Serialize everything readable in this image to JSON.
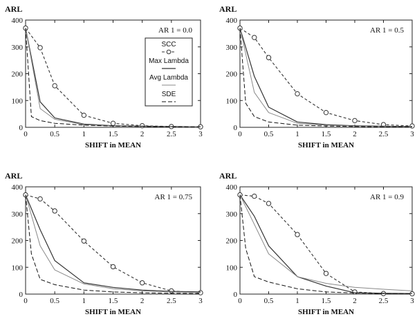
{
  "chart_data": [
    {
      "type": "line",
      "annotation": "AR 1 = 0.0",
      "ylabel": "ARL",
      "xlabel": "SHIFT in MEAN",
      "xlim": [
        0,
        3
      ],
      "ylim": [
        0,
        400
      ],
      "xticks": [
        "0",
        "0.5",
        "1",
        "1.5",
        "2",
        "2.5",
        "3"
      ],
      "yticks": [
        "0",
        "100",
        "200",
        "300",
        "400"
      ],
      "legend": {
        "entries": [
          "SCC",
          "Max Lambda",
          "Avg Lambda",
          "SDE"
        ],
        "placement": "top-right"
      },
      "series": [
        {
          "name": "SCC",
          "style": "dashed-circle",
          "x": [
            0,
            0.25,
            0.5,
            1,
            1.5,
            2,
            2.5,
            3
          ],
          "y": [
            370,
            297,
            155,
            45,
            15,
            6,
            3,
            2
          ]
        },
        {
          "name": "Max Lambda",
          "style": "solid-dark",
          "x": [
            0,
            0.25,
            0.5,
            1,
            1.5,
            2,
            2.5,
            3
          ],
          "y": [
            370,
            95,
            35,
            12,
            6,
            4,
            3,
            2
          ]
        },
        {
          "name": "Avg Lambda",
          "style": "solid-light",
          "x": [
            0,
            0.25,
            0.5,
            1,
            1.5,
            2,
            2.5,
            3
          ],
          "y": [
            370,
            70,
            30,
            10,
            5,
            3,
            2,
            2
          ]
        },
        {
          "name": "SDE",
          "style": "dashed-long",
          "x": [
            0,
            0.1,
            0.25,
            0.5,
            1,
            1.5,
            2,
            2.5,
            3
          ],
          "y": [
            370,
            40,
            25,
            15,
            8,
            5,
            3,
            2,
            2
          ]
        }
      ]
    },
    {
      "type": "line",
      "annotation": "AR 1 = 0.5",
      "ylabel": "ARL",
      "xlabel": "SHIFT in MEAN",
      "xlim": [
        0,
        3
      ],
      "ylim": [
        0,
        400
      ],
      "xticks": [
        "0",
        "0.5",
        "1",
        "1.5",
        "2",
        "2.5",
        "3"
      ],
      "yticks": [
        "0",
        "100",
        "200",
        "300",
        "400"
      ],
      "series": [
        {
          "name": "SCC",
          "style": "dashed-circle",
          "x": [
            0,
            0.25,
            0.5,
            1,
            1.5,
            2,
            2.5,
            3
          ],
          "y": [
            370,
            335,
            260,
            125,
            55,
            25,
            10,
            5
          ]
        },
        {
          "name": "Max Lambda",
          "style": "solid-dark",
          "x": [
            0,
            0.25,
            0.5,
            1,
            1.5,
            2,
            2.5,
            3
          ],
          "y": [
            370,
            190,
            75,
            20,
            10,
            6,
            4,
            3
          ]
        },
        {
          "name": "Avg Lambda",
          "style": "solid-light",
          "x": [
            0,
            0.25,
            0.5,
            1,
            1.5,
            2,
            2.5,
            3
          ],
          "y": [
            370,
            130,
            55,
            15,
            8,
            5,
            3,
            2
          ]
        },
        {
          "name": "SDE",
          "style": "dashed-long",
          "x": [
            0,
            0.1,
            0.25,
            0.5,
            1,
            1.5,
            2,
            2.5,
            3
          ],
          "y": [
            370,
            90,
            40,
            20,
            8,
            5,
            3,
            2,
            2
          ]
        }
      ]
    },
    {
      "type": "line",
      "annotation": "AR 1 = 0.75",
      "ylabel": "ARL",
      "xlabel": "SHIFT in MEAN",
      "xlim": [
        0,
        3
      ],
      "ylim": [
        0,
        400
      ],
      "xticks": [
        "0",
        "0.5",
        "1",
        "1.5",
        "2",
        "2.5",
        "3"
      ],
      "yticks": [
        "0",
        "100",
        "200",
        "300",
        "400"
      ],
      "series": [
        {
          "name": "SCC",
          "style": "dashed-circle",
          "x": [
            0,
            0.25,
            0.5,
            1,
            1.5,
            2,
            2.5,
            3
          ],
          "y": [
            370,
            355,
            310,
            198,
            102,
            42,
            12,
            5
          ]
        },
        {
          "name": "Max Lambda",
          "style": "solid-dark",
          "x": [
            0,
            0.25,
            0.5,
            1,
            1.5,
            2,
            2.5,
            3
          ],
          "y": [
            370,
            240,
            125,
            42,
            25,
            15,
            10,
            8
          ]
        },
        {
          "name": "Avg Lambda",
          "style": "solid-light",
          "x": [
            0,
            0.25,
            0.5,
            1,
            1.5,
            2,
            2.5,
            3
          ],
          "y": [
            370,
            180,
            90,
            38,
            20,
            12,
            8,
            6
          ]
        },
        {
          "name": "SDE",
          "style": "dashed-long",
          "x": [
            0,
            0.1,
            0.25,
            0.5,
            1,
            1.5,
            2,
            2.5,
            3
          ],
          "y": [
            370,
            150,
            55,
            35,
            15,
            8,
            5,
            3,
            2
          ]
        }
      ]
    },
    {
      "type": "line",
      "annotation": "AR 1 = 0.9",
      "ylabel": "ARL",
      "xlabel": "SHIFT in MEAN",
      "xlim": [
        0,
        3
      ],
      "ylim": [
        0,
        400
      ],
      "xticks": [
        "0",
        "0.5",
        "1",
        "1.5",
        "2",
        "2.5",
        "3"
      ],
      "yticks": [
        "0",
        "100",
        "200",
        "300",
        "400"
      ],
      "series": [
        {
          "name": "SCC",
          "style": "dashed-circle",
          "x": [
            0,
            0.25,
            0.5,
            1,
            1.5,
            2,
            2.5,
            3
          ],
          "y": [
            370,
            365,
            338,
            222,
            77,
            8,
            2,
            1
          ]
        },
        {
          "name": "Max Lambda",
          "style": "solid-dark",
          "x": [
            0,
            0.25,
            0.5,
            1,
            1.5,
            2,
            2.5,
            3
          ],
          "y": [
            370,
            290,
            180,
            65,
            30,
            5,
            3,
            2
          ]
        },
        {
          "name": "Avg Lambda",
          "style": "solid-light",
          "x": [
            0,
            0.25,
            0.5,
            1,
            1.5,
            2,
            2.5,
            3
          ],
          "y": [
            370,
            260,
            150,
            65,
            40,
            25,
            18,
            12
          ]
        },
        {
          "name": "SDE",
          "style": "dashed-long",
          "x": [
            0,
            0.1,
            0.25,
            0.5,
            1,
            1.5,
            2,
            2.5,
            3
          ],
          "y": [
            370,
            170,
            65,
            45,
            20,
            8,
            4,
            2,
            2
          ]
        }
      ]
    }
  ]
}
